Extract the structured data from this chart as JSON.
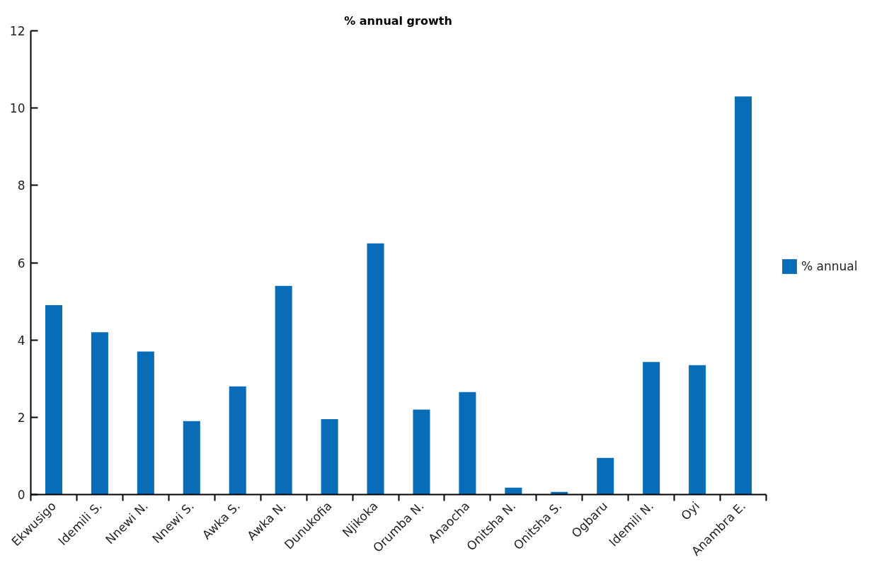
{
  "chart_data": {
    "type": "bar",
    "title": "% annual growth",
    "categories": [
      "Ekwusigo",
      "Idemili S.",
      "Nnewi N.",
      "Nnewi S.",
      "Awka S.",
      "Awka N.",
      "Dunukofia",
      "Njikoka",
      "Orumba N.",
      "Anaocha",
      "Onitsha N.",
      "Onitsha S.",
      "Ogbaru",
      "Idemili N.",
      "Oyi",
      "Anambra E."
    ],
    "series": [
      {
        "name": "% annual",
        "color": "#086cb6",
        "values": [
          4.9,
          4.2,
          3.7,
          1.9,
          2.8,
          5.4,
          1.95,
          6.5,
          2.2,
          2.65,
          0.18,
          0.07,
          0.95,
          3.43,
          3.35,
          10.3
        ]
      }
    ],
    "ylim": [
      0,
      12
    ],
    "yticks": [
      0,
      2,
      4,
      6,
      8,
      10,
      12
    ],
    "grid": false,
    "legend": "right"
  }
}
